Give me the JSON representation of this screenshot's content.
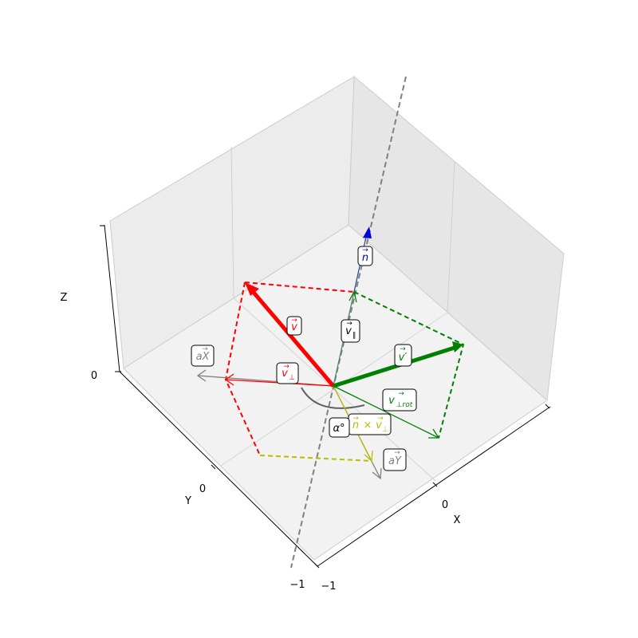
{
  "axes": {
    "x_label": "X",
    "y_label": "Y",
    "z_label": "Z",
    "x_ticks": [
      "−1",
      "0"
    ],
    "y_ticks": [
      "−1",
      "0"
    ],
    "z_ticks": [
      "0"
    ]
  },
  "vectors": {
    "v": {
      "base": "v",
      "color": "#ff0000"
    },
    "v_perp": {
      "base": "v",
      "sub": "⊥",
      "color": "#ff0000"
    },
    "v_par": {
      "base": "v",
      "sub": "∥",
      "color": "#000000"
    },
    "n": {
      "base": "n",
      "color": "#0000cc"
    },
    "v_prime": {
      "base": "v′",
      "color": "#008000"
    },
    "v_perp_rot": {
      "base": "v",
      "sub": "⊥rot",
      "color": "#008000"
    },
    "n_cross": {
      "base": "n",
      "op": " × ",
      "base2": "v",
      "sub": "⊥",
      "color": "#bbbb00"
    },
    "aX": {
      "base": "aX",
      "color": "#808080"
    },
    "aY": {
      "base": "aY",
      "color": "#808080"
    },
    "alpha": {
      "base": "α°",
      "color": "#000000"
    }
  }
}
